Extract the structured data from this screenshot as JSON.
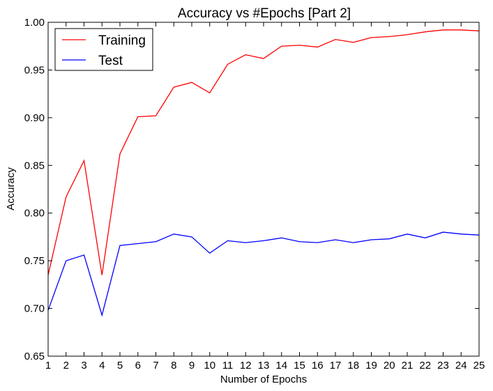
{
  "chart_data": {
    "type": "line",
    "title": "Accuracy vs #Epochs [Part 2]",
    "xlabel": "Number of Epochs",
    "ylabel": "Accuracy",
    "x": [
      1,
      2,
      3,
      4,
      5,
      6,
      7,
      8,
      9,
      10,
      11,
      12,
      13,
      14,
      15,
      16,
      17,
      18,
      19,
      20,
      21,
      22,
      23,
      24,
      25
    ],
    "xlim": [
      1,
      25
    ],
    "ylim": [
      0.65,
      1.0
    ],
    "x_ticks": [
      "1",
      "2",
      "3",
      "4",
      "5",
      "6",
      "7",
      "8",
      "9",
      "10",
      "11",
      "12",
      "13",
      "14",
      "15",
      "16",
      "17",
      "18",
      "19",
      "20",
      "21",
      "22",
      "23",
      "24",
      "25"
    ],
    "y_ticks": [
      "0.65",
      "0.70",
      "0.75",
      "0.80",
      "0.85",
      "0.90",
      "0.95",
      "1.00"
    ],
    "grid": false,
    "legend_position": "top-left",
    "series": [
      {
        "name": "Training",
        "color": "#ff0000",
        "values": [
          0.735,
          0.817,
          0.855,
          0.735,
          0.862,
          0.901,
          0.902,
          0.932,
          0.937,
          0.926,
          0.956,
          0.966,
          0.962,
          0.975,
          0.976,
          0.974,
          0.982,
          0.979,
          0.984,
          0.985,
          0.987,
          0.99,
          0.992,
          0.992,
          0.991
        ]
      },
      {
        "name": "Test",
        "color": "#0000ff",
        "values": [
          0.698,
          0.75,
          0.756,
          0.693,
          0.766,
          0.768,
          0.77,
          0.778,
          0.775,
          0.758,
          0.771,
          0.769,
          0.771,
          0.774,
          0.77,
          0.769,
          0.772,
          0.769,
          0.772,
          0.773,
          0.778,
          0.774,
          0.78,
          0.778,
          0.777
        ]
      }
    ]
  }
}
